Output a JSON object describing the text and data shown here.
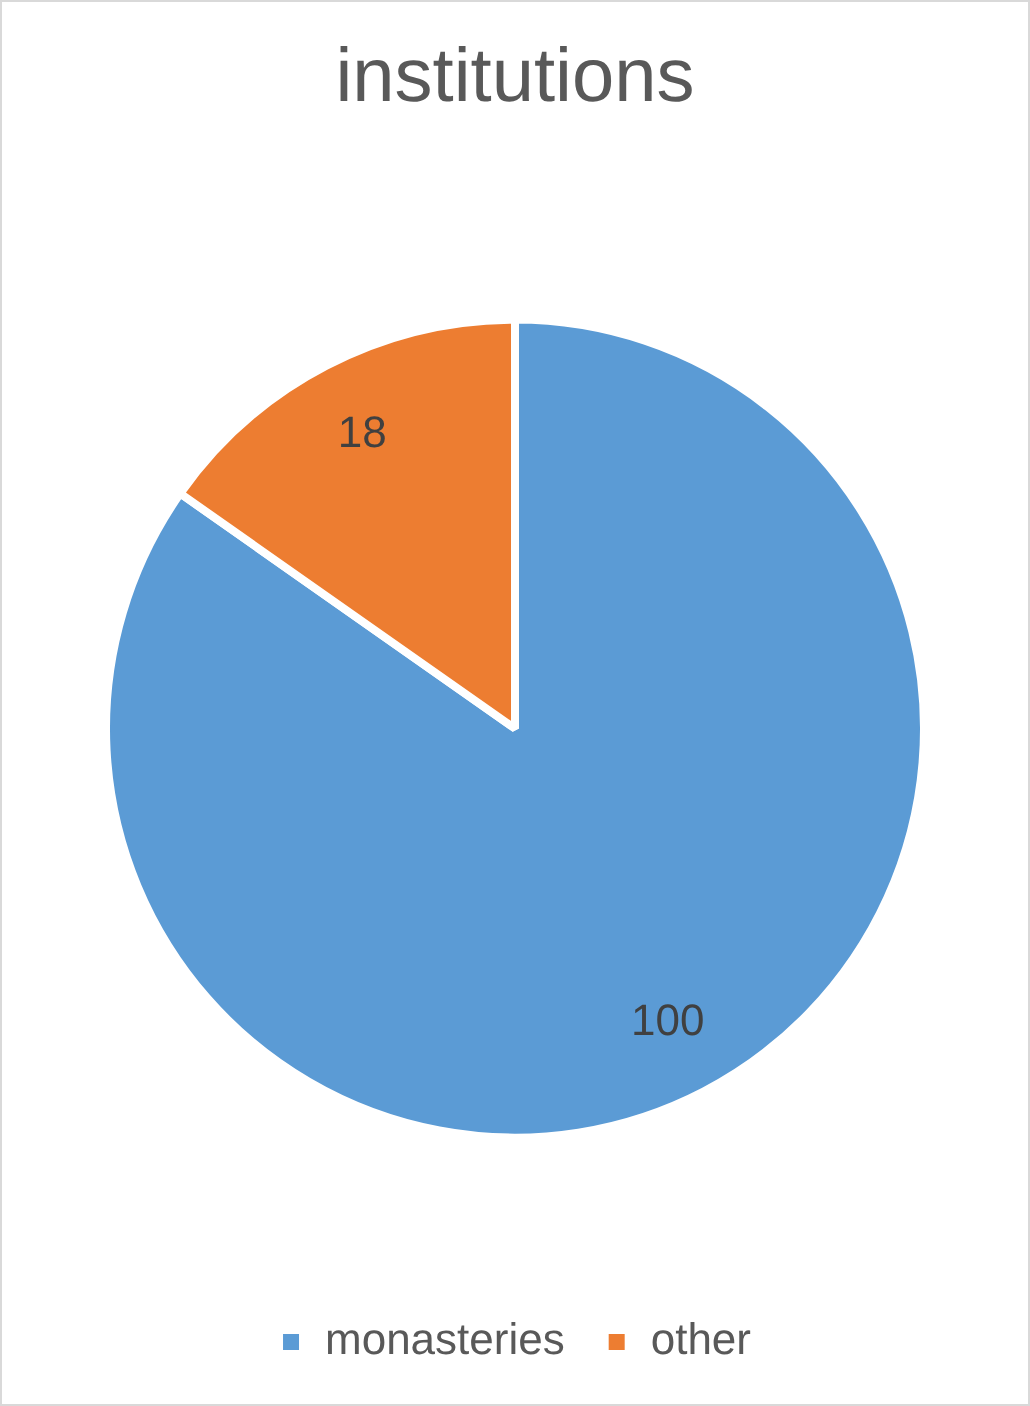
{
  "chart_data": {
    "type": "pie",
    "title": "institutions",
    "categories": [
      "monasteries",
      "other"
    ],
    "values": [
      100,
      18
    ],
    "colors": [
      "#5b9bd5",
      "#ed7d31"
    ],
    "data_labels": true,
    "legend": "bottom"
  }
}
